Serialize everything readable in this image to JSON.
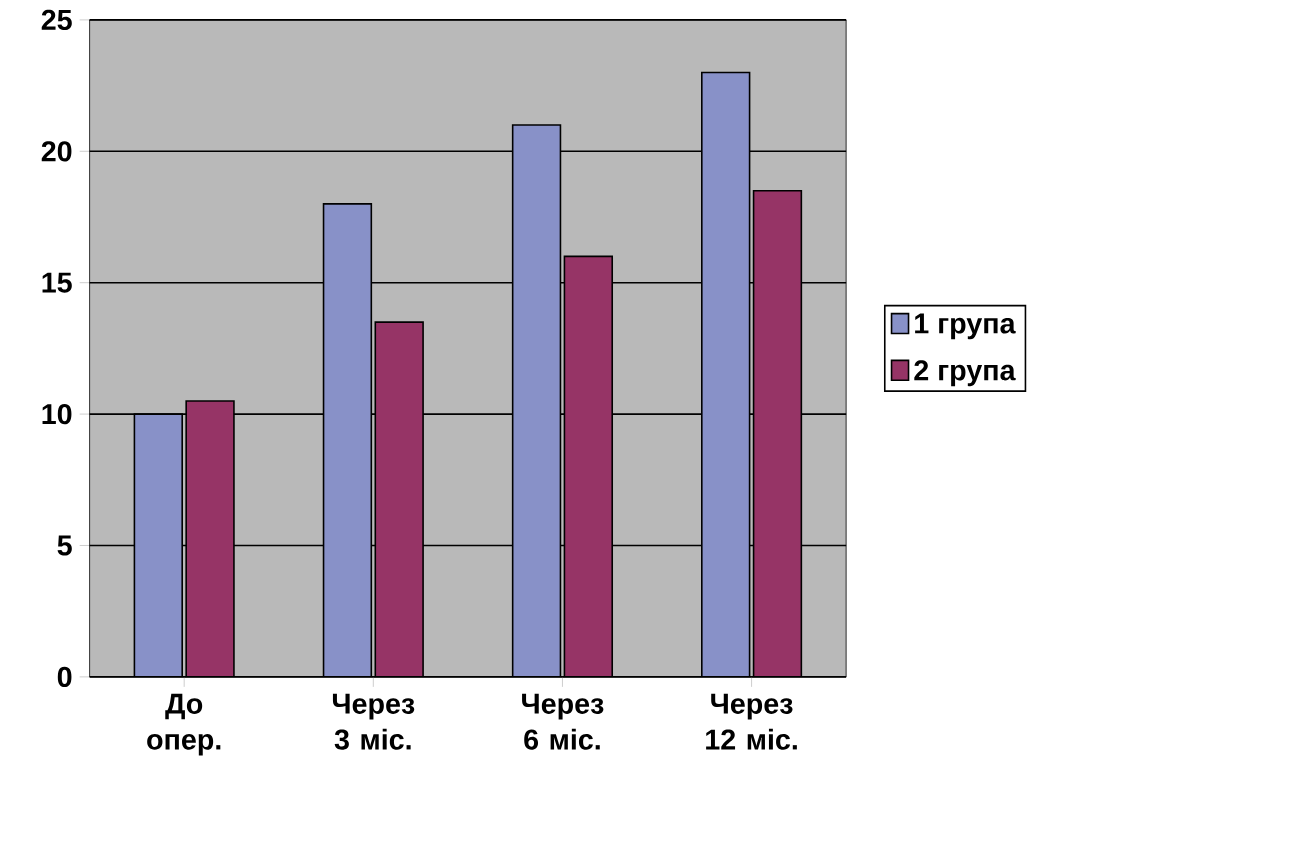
{
  "chart_data": {
    "type": "bar",
    "categories": [
      "До опер.",
      "Через 3 міс.",
      "Через 6 міс.",
      "Через 12 міс."
    ],
    "series": [
      {
        "name": "1 група",
        "color": "#8891c8",
        "values": [
          10,
          18,
          21,
          23
        ]
      },
      {
        "name": "2 група",
        "color": "#963466",
        "values": [
          10.5,
          13.5,
          16,
          18.5
        ]
      }
    ],
    "ylim": [
      0,
      25
    ],
    "yticks": [
      0,
      5,
      10,
      15,
      20,
      25
    ],
    "grid": "y",
    "legend": "right"
  }
}
